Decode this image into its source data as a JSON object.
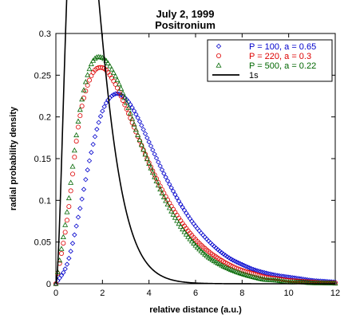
{
  "chart_data": {
    "type": "scatter",
    "title": "July 2, 1999",
    "subtitle": "Positronium",
    "xlabel": "relative distance (a.u.)",
    "ylabel": "radial probability density",
    "xlim": [
      0,
      12
    ],
    "ylim": [
      0,
      0.3
    ],
    "x_ticks": [
      0,
      2,
      4,
      6,
      8,
      10,
      12
    ],
    "y_ticks": [
      0,
      0.05,
      0.1,
      0.15,
      0.2,
      0.25,
      0.3
    ],
    "x_tick_labels": [
      "0",
      "2",
      "4",
      "6",
      "8",
      "10",
      "12"
    ],
    "y_tick_labels": [
      "0",
      "0.05",
      "0.1",
      "0.15",
      "0.2",
      "0.25",
      "0.3"
    ],
    "grid": false,
    "legend_position": "top-right",
    "series": [
      {
        "name": "P = 100, a = 0.65",
        "marker": "diamond",
        "color": "#0000cc",
        "x": [
          0,
          0.5,
          1,
          1.5,
          2,
          2.5,
          3,
          3.5,
          4,
          4.5,
          5,
          5.5,
          6,
          6.5,
          7,
          7.5,
          8,
          8.5,
          9,
          9.5,
          10,
          10.5,
          11,
          11.5,
          12
        ],
        "y": [
          0,
          0.025,
          0.085,
          0.155,
          0.207,
          0.227,
          0.222,
          0.2,
          0.17,
          0.14,
          0.113,
          0.089,
          0.069,
          0.053,
          0.04,
          0.03,
          0.023,
          0.017,
          0.013,
          0.01,
          0.008,
          0.006,
          0.004,
          0.003,
          0.002
        ]
      },
      {
        "name": "P = 220, a = 0.3",
        "marker": "circle",
        "color": "#dd0000",
        "x": [
          0,
          0.5,
          1,
          1.5,
          2,
          2.5,
          3,
          3.5,
          4,
          4.5,
          5,
          5.5,
          6,
          6.5,
          7,
          7.5,
          8,
          8.5,
          9,
          9.5,
          10,
          10.5,
          11,
          11.5,
          12
        ],
        "y": [
          0,
          0.08,
          0.195,
          0.248,
          0.259,
          0.242,
          0.212,
          0.178,
          0.145,
          0.116,
          0.091,
          0.07,
          0.053,
          0.04,
          0.03,
          0.022,
          0.016,
          0.012,
          0.008,
          0.006,
          0.004,
          0.003,
          0.002,
          0.001,
          0.001
        ]
      },
      {
        "name": "P = 500, a = 0.22",
        "marker": "triangle",
        "color": "#006600",
        "x": [
          0,
          0.5,
          1,
          1.5,
          2,
          2.5,
          3,
          3.5,
          4,
          4.5,
          5,
          5.5,
          6,
          6.5,
          7,
          7.5,
          8,
          8.5,
          9,
          9.5,
          10,
          10.5,
          11,
          11.5,
          12
        ],
        "y": [
          0,
          0.09,
          0.202,
          0.262,
          0.271,
          0.252,
          0.22,
          0.18,
          0.144,
          0.112,
          0.085,
          0.063,
          0.046,
          0.033,
          0.024,
          0.017,
          0.012,
          0.008,
          0.005,
          0.004,
          0.002,
          0.002,
          0.001,
          0.001,
          0.0005
        ]
      }
    ],
    "line_series": [
      {
        "name": "1s",
        "color": "#000000",
        "formula": "4 r^2 exp(-2r)",
        "x_range": [
          0,
          12
        ]
      }
    ]
  },
  "colors": {
    "series_blue": "#0000cc",
    "series_red": "#dd0000",
    "series_green": "#006600",
    "line_black": "#000000"
  }
}
